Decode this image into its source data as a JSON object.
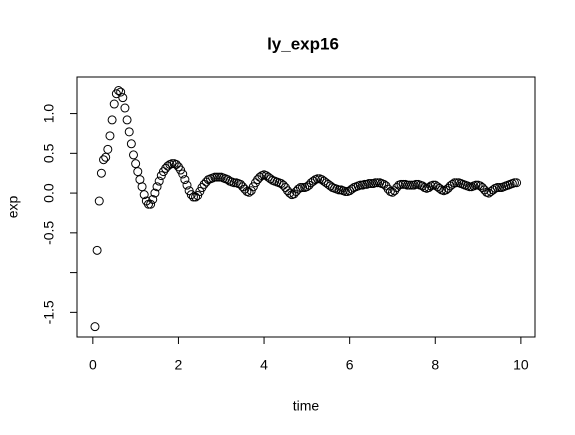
{
  "chart_data": {
    "type": "scatter",
    "title": "ly_exp16",
    "xlabel": "time",
    "ylabel": "exp",
    "xlim": [
      -0.37,
      10.33
    ],
    "ylim": [
      -1.81,
      1.46
    ],
    "xticks": [
      0,
      2,
      4,
      6,
      8,
      10
    ],
    "yticks": [
      -1.5,
      {
        "value": -1
      },
      -0.5,
      {
        "value": 0,
        "label": "0.0"
      },
      0.5,
      {
        "value": 1,
        "label": "1.0"
      }
    ],
    "color": "#000000",
    "x": [
      0.05,
      0.1,
      0.15,
      0.2,
      0.25,
      0.3,
      0.35,
      0.4,
      0.45,
      0.5,
      0.55,
      0.6,
      0.65,
      0.7,
      0.75,
      0.8,
      0.85,
      0.9,
      0.95,
      1.0,
      1.05,
      1.1,
      1.15,
      1.2,
      1.25,
      1.3,
      1.35,
      1.4,
      1.45,
      1.5,
      1.55,
      1.6,
      1.65,
      1.7,
      1.75,
      1.8,
      1.85,
      1.9,
      1.95,
      2.0,
      2.05,
      2.1,
      2.15,
      2.2,
      2.25,
      2.3,
      2.35,
      2.4,
      2.45,
      2.5,
      2.55,
      2.6,
      2.65,
      2.7,
      2.75,
      2.8,
      2.85,
      2.9,
      2.95,
      3.0,
      3.05,
      3.1,
      3.15,
      3.2,
      3.25,
      3.3,
      3.35,
      3.4,
      3.45,
      3.5,
      3.55,
      3.6,
      3.65,
      3.7,
      3.75,
      3.8,
      3.85,
      3.9,
      3.95,
      4.0,
      4.05,
      4.1,
      4.15,
      4.2,
      4.25,
      4.3,
      4.35,
      4.4,
      4.45,
      4.5,
      4.55,
      4.6,
      4.65,
      4.7,
      4.75,
      4.8,
      4.85,
      4.9,
      4.95,
      5.0,
      5.05,
      5.1,
      5.15,
      5.2,
      5.25,
      5.3,
      5.35,
      5.4,
      5.45,
      5.5,
      5.55,
      5.6,
      5.65,
      5.7,
      5.75,
      5.8,
      5.85,
      5.9,
      5.95,
      6.0,
      6.05,
      6.1,
      6.15,
      6.2,
      6.25,
      6.3,
      6.35,
      6.4,
      6.45,
      6.5,
      6.55,
      6.6,
      6.65,
      6.7,
      6.75,
      6.8,
      6.85,
      6.9,
      6.95,
      7.0,
      7.05,
      7.1,
      7.15,
      7.2,
      7.25,
      7.3,
      7.35,
      7.4,
      7.45,
      7.5,
      7.55,
      7.6,
      7.65,
      7.7,
      7.75,
      7.8,
      7.85,
      7.9,
      7.95,
      8.0,
      8.05,
      8.1,
      8.15,
      8.2,
      8.25,
      8.3,
      8.35,
      8.4,
      8.45,
      8.5,
      8.55,
      8.6,
      8.65,
      8.7,
      8.75,
      8.8,
      8.85,
      8.9,
      8.95,
      9.0,
      9.05,
      9.1,
      9.15,
      9.2,
      9.25,
      9.3,
      9.35,
      9.4,
      9.45,
      9.5,
      9.55,
      9.6,
      9.65,
      9.7,
      9.75,
      9.8,
      9.85,
      9.9
    ],
    "values": [
      -1.68,
      -0.72,
      -0.1,
      0.25,
      0.42,
      0.45,
      0.55,
      0.72,
      0.92,
      1.12,
      1.25,
      1.29,
      1.27,
      1.2,
      1.07,
      0.92,
      0.77,
      0.62,
      0.48,
      0.37,
      0.27,
      0.17,
      0.08,
      -0.02,
      -0.1,
      -0.14,
      -0.14,
      -0.08,
      0.0,
      0.08,
      0.15,
      0.22,
      0.27,
      0.31,
      0.34,
      0.36,
      0.37,
      0.37,
      0.36,
      0.33,
      0.29,
      0.24,
      0.17,
      0.1,
      0.03,
      -0.02,
      -0.05,
      -0.05,
      -0.03,
      0.02,
      0.07,
      0.11,
      0.14,
      0.17,
      0.18,
      0.19,
      0.2,
      0.2,
      0.2,
      0.2,
      0.19,
      0.18,
      0.17,
      0.15,
      0.14,
      0.13,
      0.13,
      0.12,
      0.11,
      0.08,
      0.05,
      0.02,
      0.01,
      0.03,
      0.08,
      0.13,
      0.17,
      0.2,
      0.22,
      0.23,
      0.22,
      0.2,
      0.18,
      0.16,
      0.15,
      0.14,
      0.13,
      0.12,
      0.1,
      0.07,
      0.03,
      0.0,
      -0.02,
      -0.01,
      0.02,
      0.05,
      0.07,
      0.07,
      0.07,
      0.08,
      0.1,
      0.13,
      0.15,
      0.17,
      0.18,
      0.18,
      0.17,
      0.15,
      0.13,
      0.11,
      0.09,
      0.07,
      0.06,
      0.05,
      0.04,
      0.04,
      0.03,
      0.02,
      0.02,
      0.03,
      0.05,
      0.07,
      0.08,
      0.09,
      0.1,
      0.1,
      0.11,
      0.11,
      0.12,
      0.12,
      0.12,
      0.13,
      0.13,
      0.13,
      0.12,
      0.11,
      0.09,
      0.05,
      0.02,
      0.01,
      0.03,
      0.07,
      0.1,
      0.11,
      0.11,
      0.11,
      0.1,
      0.1,
      0.1,
      0.1,
      0.11,
      0.11,
      0.1,
      0.09,
      0.07,
      0.06,
      0.07,
      0.09,
      0.1,
      0.1,
      0.08,
      0.06,
      0.04,
      0.03,
      0.04,
      0.06,
      0.09,
      0.11,
      0.13,
      0.13,
      0.13,
      0.12,
      0.11,
      0.1,
      0.09,
      0.08,
      0.08,
      0.09,
      0.1,
      0.1,
      0.09,
      0.07,
      0.04,
      0.01,
      0.0,
      0.02,
      0.04,
      0.06,
      0.07,
      0.07,
      0.07,
      0.08,
      0.09,
      0.1,
      0.11,
      0.12,
      0.13,
      0.13
    ]
  }
}
